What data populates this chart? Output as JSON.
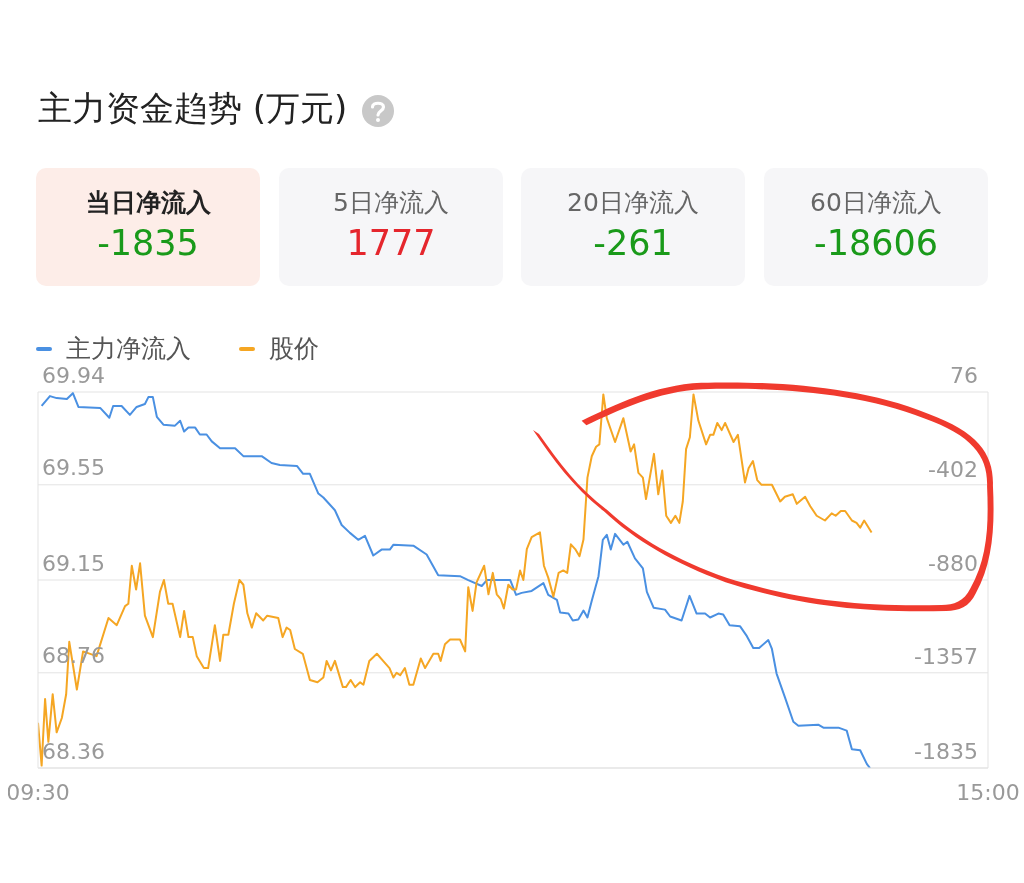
{
  "chart_data": [
    {
      "type": "other",
      "title": "主力资金趋势 (万元)",
      "categories": [
        "当日净流入",
        "5日净流入",
        "20日净流入",
        "60日净流入"
      ],
      "values": [
        -1835,
        1777,
        -261,
        -18606
      ],
      "data_labels": true
    },
    {
      "type": "line",
      "series": [
        {
          "name": "主力净流入",
          "color": "#4a90e2",
          "axis": "y2",
          "x": [
            9.521,
            9.569,
            9.608,
            9.667,
            9.702,
            9.734,
            9.86,
            9.913,
            9.935,
            9.984,
            10.032,
            10.071,
            10.119,
            10.139,
            10.165,
            10.188,
            10.226,
            10.293,
            10.323,
            10.346,
            10.371,
            10.41,
            10.437,
            10.476,
            10.506,
            10.554,
            10.641,
            10.689,
            10.795,
            10.852,
            10.9,
            10.999,
            11.035,
            11.074,
            11.123,
            11.152,
            11.219,
            11.258,
            11.306,
            11.354,
            11.393,
            11.441,
            11.489,
            11.537,
            11.558,
            11.673,
            11.75,
            11.817,
            11.943,
            11.991,
            12.069,
            12.099,
            12.234,
            12.268,
            12.3,
            12.358,
            12.426,
            12.454,
            12.504,
            12.523,
            12.571,
            12.596,
            12.628,
            12.658,
            12.681,
            12.706,
            12.745,
            12.77,
            12.793,
            12.816,
            12.841,
            12.889,
            12.912,
            12.956,
            13.002,
            13.025,
            13.064,
            13.13,
            13.16,
            13.226,
            13.272,
            13.313,
            13.362,
            13.391,
            13.439,
            13.467,
            13.504,
            13.565,
            13.604,
            13.641,
            13.675,
            13.728,
            13.749,
            13.776,
            13.824,
            13.873,
            13.902,
            14.017,
            14.047,
            14.134,
            14.182,
            14.212,
            14.26,
            14.299,
            14.317
          ],
          "values": [
            5,
            55,
            45,
            40,
            70,
            0,
            -5,
            -55,
            5,
            5,
            -40,
            0,
            15,
            50,
            50,
            -50,
            -90,
            -95,
            -70,
            -125,
            -105,
            -105,
            -140,
            -140,
            -175,
            -210,
            -210,
            -250,
            -250,
            -285,
            -295,
            -300,
            -340,
            -340,
            -440,
            -460,
            -525,
            -600,
            -640,
            -675,
            -655,
            -755,
            -725,
            -725,
            -700,
            -705,
            -750,
            -855,
            -860,
            -880,
            -910,
            -880,
            -880,
            -955,
            -945,
            -935,
            -895,
            -955,
            -980,
            -1045,
            -1050,
            -1085,
            -1080,
            -1035,
            -1070,
            -985,
            -860,
            -675,
            -650,
            -725,
            -645,
            -700,
            -685,
            -770,
            -820,
            -940,
            -1020,
            -1030,
            -1065,
            -1085,
            -960,
            -1050,
            -1050,
            -1070,
            -1050,
            -1055,
            -1110,
            -1115,
            -1165,
            -1225,
            -1225,
            -1185,
            -1230,
            -1355,
            -1475,
            -1600,
            -1620,
            -1615,
            -1630,
            -1630,
            -1645,
            -1740,
            -1745,
            -1815,
            -1835
          ]
        },
        {
          "name": "股价",
          "color": "#f5a623",
          "x": [
            9.5,
            9.521,
            9.541,
            9.56,
            9.585,
            9.608,
            9.638,
            9.663,
            9.681,
            9.725,
            9.761,
            9.839,
            9.908,
            9.956,
            10.004,
            10.023,
            10.043,
            10.068,
            10.091,
            10.119,
            10.165,
            10.206,
            10.229,
            10.254,
            10.279,
            10.323,
            10.346,
            10.371,
            10.396,
            10.419,
            10.46,
            10.485,
            10.524,
            10.554,
            10.573,
            10.602,
            10.634,
            10.666,
            10.689,
            10.712,
            10.738,
            10.763,
            10.804,
            10.827,
            10.891,
            10.916,
            10.939,
            10.96,
            10.987,
            11.033,
            11.074,
            11.118,
            11.152,
            11.171,
            11.196,
            11.219,
            11.265,
            11.283,
            11.31,
            11.336,
            11.365,
            11.384,
            11.418,
            11.462,
            11.498,
            11.535,
            11.558,
            11.576,
            11.597,
            11.624,
            11.65,
            11.673,
            11.716,
            11.741,
            11.789,
            11.817,
            11.831,
            11.856,
            11.886,
            11.943,
            11.973,
            11.991,
            12.016,
            12.039,
            12.083,
            12.108,
            12.133,
            12.156,
            12.179,
            12.197,
            12.223,
            12.248,
            12.268,
            12.291,
            12.31,
            12.33,
            12.358,
            12.406,
            12.429,
            12.454,
            12.484,
            12.514,
            12.541,
            12.564,
            12.585,
            12.61,
            12.635,
            12.658,
            12.681,
            12.706,
            12.731,
            12.75,
            12.773,
            12.793,
            12.841,
            12.889,
            12.931,
            12.951,
            12.976,
            13.002,
            13.02,
            13.066,
            13.091,
            13.114,
            13.137,
            13.164,
            13.19,
            13.213,
            13.233,
            13.252,
            13.274,
            13.295,
            13.323,
            13.368,
            13.391,
            13.41,
            13.433,
            13.458,
            13.478,
            13.527,
            13.552,
            13.593,
            13.614,
            13.639,
            13.664,
            13.689,
            13.749,
            13.797,
            13.824,
            13.87,
            13.893,
            13.941,
            13.971,
            14.008,
            14.056,
            14.095,
            14.118,
            14.148,
            14.173,
            14.212,
            14.239,
            14.26,
            14.283,
            14.326
          ],
          "values": [
            68.55,
            68.37,
            68.65,
            68.47,
            68.67,
            68.51,
            68.57,
            68.67,
            68.89,
            68.69,
            68.85,
            68.83,
            68.99,
            68.96,
            69.04,
            69.05,
            69.21,
            69.11,
            69.22,
            69.0,
            68.91,
            69.1,
            69.15,
            69.05,
            69.05,
            68.91,
            69.02,
            68.91,
            68.91,
            68.83,
            68.78,
            68.78,
            68.96,
            68.81,
            68.92,
            68.92,
            69.05,
            69.15,
            69.13,
            69.01,
            68.95,
            69.01,
            68.98,
            69.0,
            68.99,
            68.91,
            68.95,
            68.94,
            68.86,
            68.84,
            68.73,
            68.72,
            68.74,
            68.81,
            68.77,
            68.81,
            68.7,
            68.7,
            68.73,
            68.7,
            68.72,
            68.71,
            68.81,
            68.84,
            68.81,
            68.78,
            68.74,
            68.76,
            68.75,
            68.78,
            68.71,
            68.71,
            68.82,
            68.78,
            68.84,
            68.84,
            68.81,
            68.88,
            68.9,
            68.9,
            68.85,
            69.12,
            69.02,
            69.14,
            69.21,
            69.09,
            69.18,
            69.09,
            69.07,
            69.03,
            69.13,
            69.11,
            69.11,
            69.19,
            69.15,
            69.28,
            69.33,
            69.35,
            69.21,
            69.16,
            69.08,
            69.18,
            69.19,
            69.18,
            69.3,
            69.28,
            69.25,
            69.32,
            69.58,
            69.67,
            69.71,
            69.72,
            69.93,
            69.83,
            69.73,
            69.83,
            69.69,
            69.72,
            69.6,
            69.58,
            69.49,
            69.68,
            69.51,
            69.61,
            69.42,
            69.39,
            69.42,
            69.39,
            69.48,
            69.7,
            69.75,
            69.93,
            69.82,
            69.72,
            69.76,
            69.76,
            69.81,
            69.78,
            69.81,
            69.73,
            69.76,
            69.56,
            69.62,
            69.65,
            69.57,
            69.55,
            69.55,
            69.48,
            69.5,
            69.51,
            69.47,
            69.5,
            69.46,
            69.42,
            69.4,
            69.43,
            69.42,
            69.44,
            69.44,
            69.4,
            69.39,
            69.37,
            69.4,
            69.35
          ]
        }
      ],
      "xlim": [
        9.5,
        15
      ],
      "xticks": [
        {
          "value": 9.5,
          "label": "09:30"
        },
        {
          "value": 15,
          "label": "15:00"
        }
      ],
      "ylim": [
        68.36,
        69.94
      ],
      "yticks": [
        68.36,
        68.76,
        69.15,
        69.55,
        69.94
      ],
      "y2lim": [
        -1835,
        76
      ],
      "y2ticks": [
        -1835,
        -1357,
        -880,
        -402,
        76
      ],
      "grid": "y",
      "legend": "top left",
      "marker": "none"
    }
  ]
}
